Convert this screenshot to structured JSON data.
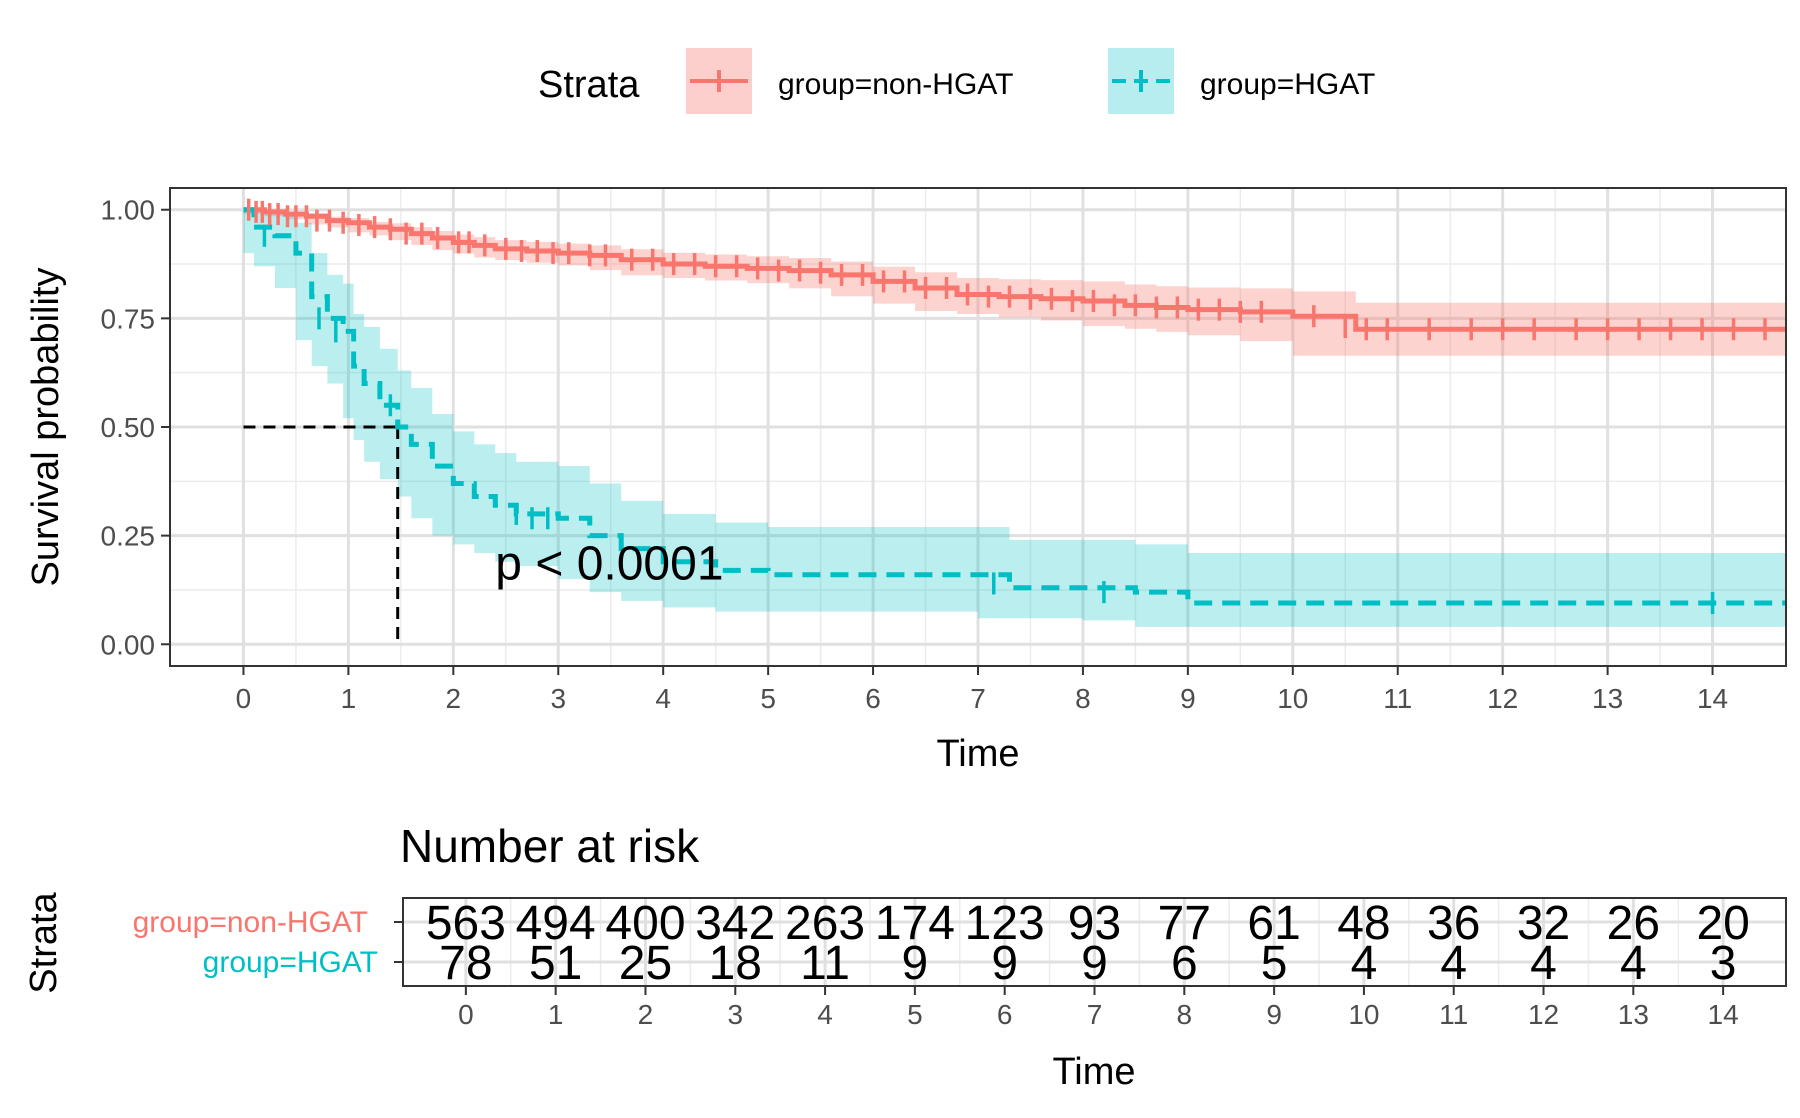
{
  "legend": {
    "title": "Strata",
    "items": [
      {
        "label": "group=non-HGAT",
        "color": "#F8766D",
        "line": "solid"
      },
      {
        "label": "group=HGAT",
        "color": "#00BFC4",
        "line": "dashed"
      }
    ]
  },
  "chart_data": [
    {
      "type": "line",
      "subtype": "kaplan-meier",
      "xlabel": "Time",
      "ylabel": "Survival probability",
      "xlim": [
        -0.7,
        14.7
      ],
      "ylim": [
        -0.05,
        1.05
      ],
      "x_ticks": [
        0,
        1,
        2,
        3,
        4,
        5,
        6,
        7,
        8,
        9,
        10,
        11,
        12,
        13,
        14
      ],
      "y_ticks": [
        0.0,
        0.25,
        0.5,
        0.75,
        1.0
      ],
      "y_tick_labels": [
        "0.00",
        "0.25",
        "0.50",
        "0.75",
        "1.00"
      ],
      "grid": true,
      "legend_position": "top",
      "annotation": "p < 0.0001",
      "annotation_pos": [
        2.4,
        0.19
      ],
      "median_line": {
        "x": 1.47,
        "y": 0.5
      },
      "series": [
        {
          "name": "group=non-HGAT",
          "color": "#F8766D",
          "dash": "solid",
          "x": [
            0,
            0.2,
            0.4,
            0.6,
            0.8,
            1.0,
            1.2,
            1.4,
            1.6,
            1.8,
            2.0,
            2.2,
            2.4,
            2.7,
            3.0,
            3.3,
            3.6,
            4.0,
            4.4,
            4.8,
            5.2,
            5.6,
            6.0,
            6.4,
            6.8,
            7.2,
            7.6,
            8.0,
            8.4,
            8.7,
            9.0,
            9.5,
            10.0,
            10.6,
            11.0,
            14.7
          ],
          "y": [
            1.0,
            0.995,
            0.99,
            0.985,
            0.975,
            0.97,
            0.96,
            0.955,
            0.945,
            0.935,
            0.925,
            0.918,
            0.91,
            0.905,
            0.9,
            0.895,
            0.885,
            0.875,
            0.87,
            0.865,
            0.86,
            0.85,
            0.835,
            0.82,
            0.805,
            0.8,
            0.795,
            0.79,
            0.78,
            0.775,
            0.77,
            0.765,
            0.755,
            0.725,
            0.725,
            0.725
          ],
          "ci_lower": [
            1.0,
            0.99,
            0.985,
            0.978,
            0.966,
            0.959,
            0.948,
            0.941,
            0.93,
            0.919,
            0.907,
            0.899,
            0.89,
            0.884,
            0.878,
            0.872,
            0.861,
            0.849,
            0.843,
            0.837,
            0.831,
            0.819,
            0.801,
            0.784,
            0.767,
            0.76,
            0.752,
            0.745,
            0.732,
            0.726,
            0.719,
            0.711,
            0.698,
            0.664,
            0.664,
            0.664
          ],
          "ci_upper": [
            1.0,
            1.0,
            0.995,
            0.992,
            0.984,
            0.981,
            0.972,
            0.969,
            0.96,
            0.951,
            0.943,
            0.937,
            0.93,
            0.926,
            0.922,
            0.918,
            0.909,
            0.901,
            0.897,
            0.893,
            0.889,
            0.881,
            0.869,
            0.856,
            0.843,
            0.84,
            0.838,
            0.835,
            0.828,
            0.824,
            0.821,
            0.819,
            0.812,
            0.786,
            0.786,
            0.786
          ],
          "censor_x": [
            0.05,
            0.12,
            0.18,
            0.25,
            0.33,
            0.42,
            0.5,
            0.6,
            0.7,
            0.82,
            0.95,
            1.1,
            1.25,
            1.4,
            1.55,
            1.7,
            1.85,
            2.05,
            2.15,
            2.3,
            2.5,
            2.65,
            2.8,
            2.95,
            3.1,
            3.3,
            3.45,
            3.7,
            3.9,
            4.1,
            4.3,
            4.5,
            4.7,
            4.9,
            5.1,
            5.3,
            5.5,
            5.7,
            5.9,
            6.1,
            6.3,
            6.5,
            6.7,
            6.9,
            7.1,
            7.3,
            7.5,
            7.7,
            7.9,
            8.1,
            8.3,
            8.5,
            8.7,
            8.9,
            9.1,
            9.3,
            9.5,
            9.7,
            10.2,
            10.5,
            10.7,
            10.9,
            11.3,
            11.7,
            12.0,
            12.3,
            12.7,
            13.0,
            13.3,
            13.6,
            13.9,
            14.2,
            14.5
          ],
          "censor_y": [
            1.0,
            0.995,
            0.995,
            0.99,
            0.99,
            0.985,
            0.985,
            0.985,
            0.975,
            0.975,
            0.97,
            0.965,
            0.96,
            0.955,
            0.945,
            0.945,
            0.935,
            0.925,
            0.925,
            0.918,
            0.91,
            0.905,
            0.905,
            0.9,
            0.9,
            0.895,
            0.895,
            0.885,
            0.885,
            0.875,
            0.875,
            0.87,
            0.87,
            0.865,
            0.86,
            0.86,
            0.855,
            0.85,
            0.85,
            0.835,
            0.835,
            0.82,
            0.82,
            0.805,
            0.8,
            0.8,
            0.795,
            0.795,
            0.79,
            0.79,
            0.78,
            0.78,
            0.775,
            0.775,
            0.77,
            0.77,
            0.765,
            0.765,
            0.755,
            0.73,
            0.725,
            0.725,
            0.725,
            0.725,
            0.725,
            0.725,
            0.725,
            0.725,
            0.725,
            0.725,
            0.725,
            0.725,
            0.725
          ]
        },
        {
          "name": "group=HGAT",
          "color": "#00BFC4",
          "dash": "dashed",
          "x": [
            0,
            0.1,
            0.3,
            0.5,
            0.65,
            0.8,
            0.95,
            1.05,
            1.15,
            1.3,
            1.47,
            1.6,
            1.8,
            2.0,
            2.2,
            2.4,
            2.6,
            3.0,
            3.3,
            3.6,
            4.0,
            4.5,
            5.0,
            6.0,
            7.0,
            7.3,
            8.0,
            8.5,
            9.0,
            10.0,
            12.0,
            14.7
          ],
          "y": [
            1.0,
            0.96,
            0.94,
            0.9,
            0.8,
            0.75,
            0.72,
            0.64,
            0.6,
            0.55,
            0.5,
            0.46,
            0.41,
            0.37,
            0.34,
            0.32,
            0.3,
            0.29,
            0.25,
            0.22,
            0.19,
            0.17,
            0.16,
            0.16,
            0.16,
            0.13,
            0.13,
            0.12,
            0.095,
            0.095,
            0.095,
            0.095
          ],
          "ci_lower": [
            1.0,
            0.9,
            0.87,
            0.82,
            0.7,
            0.64,
            0.6,
            0.52,
            0.47,
            0.42,
            0.38,
            0.34,
            0.29,
            0.25,
            0.23,
            0.21,
            0.19,
            0.18,
            0.15,
            0.12,
            0.1,
            0.085,
            0.075,
            0.075,
            0.075,
            0.06,
            0.06,
            0.055,
            0.04,
            0.04,
            0.04,
            0.04
          ],
          "ci_upper": [
            1.0,
            1.0,
            0.99,
            0.97,
            0.9,
            0.85,
            0.83,
            0.76,
            0.73,
            0.68,
            0.63,
            0.59,
            0.53,
            0.49,
            0.46,
            0.44,
            0.42,
            0.41,
            0.37,
            0.33,
            0.3,
            0.28,
            0.27,
            0.27,
            0.27,
            0.24,
            0.24,
            0.23,
            0.21,
            0.21,
            0.21,
            0.21
          ],
          "censor_x": [
            0.2,
            0.72,
            0.88,
            1.4,
            2.6,
            2.75,
            2.9,
            7.15,
            8.2,
            14.0
          ],
          "censor_y": [
            0.94,
            0.75,
            0.72,
            0.55,
            0.3,
            0.29,
            0.29,
            0.14,
            0.12,
            0.095
          ]
        }
      ]
    },
    {
      "type": "table",
      "title": "Number at risk",
      "xlabel": "Time",
      "ylabel": "Strata",
      "columns": [
        0,
        1,
        2,
        3,
        4,
        5,
        6,
        7,
        8,
        9,
        10,
        11,
        12,
        13,
        14
      ],
      "rows": [
        {
          "name": "group=non-HGAT",
          "color": "#F8766D",
          "values": [
            "563",
            "494",
            "400",
            "342",
            "263",
            "174",
            "123",
            "93",
            "77",
            "61",
            "48",
            "36",
            "32",
            "26",
            "20"
          ]
        },
        {
          "name": "group=HGAT",
          "color": "#00BFC4",
          "values": [
            "78",
            "51",
            "25",
            "18",
            "11",
            "9",
            "9",
            "9",
            "6",
            "5",
            "4",
            "4",
            "4",
            "4",
            "3"
          ]
        }
      ]
    }
  ]
}
